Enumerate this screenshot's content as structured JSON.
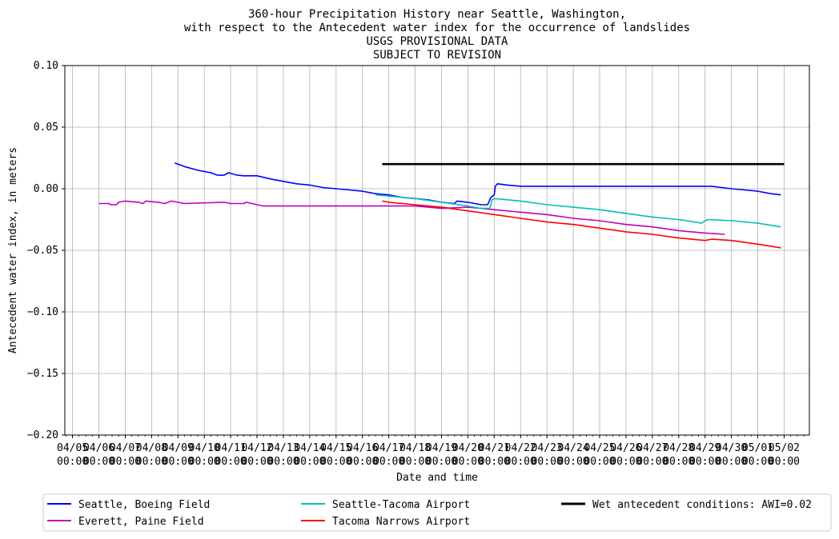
{
  "chart_data": {
    "type": "line",
    "title_lines": [
      "360-hour Precipitation History near Seattle, Washington,",
      "with respect to the Antecedent water index for the occurrence of landslides",
      "USGS PROVISIONAL DATA",
      "SUBJECT TO REVISION"
    ],
    "xlabel": "Date and time",
    "ylabel": "Antecedent water index, in meters",
    "xlim": [
      "2024-04-04T17:00",
      "2024-05-02T23:00"
    ],
    "ylim": [
      -0.2,
      0.1
    ],
    "x_ticks": [
      {
        "date": "2024-04-05T00:00",
        "label1": "04/05",
        "label2": "00:00"
      },
      {
        "date": "2024-04-06T00:00",
        "label1": "04/06",
        "label2": "00:00"
      },
      {
        "date": "2024-04-07T00:00",
        "label1": "04/07",
        "label2": "00:00"
      },
      {
        "date": "2024-04-08T00:00",
        "label1": "04/08",
        "label2": "00:00"
      },
      {
        "date": "2024-04-09T00:00",
        "label1": "04/09",
        "label2": "00:00"
      },
      {
        "date": "2024-04-10T00:00",
        "label1": "04/10",
        "label2": "00:00"
      },
      {
        "date": "2024-04-11T00:00",
        "label1": "04/11",
        "label2": "00:00"
      },
      {
        "date": "2024-04-12T00:00",
        "label1": "04/12",
        "label2": "00:00"
      },
      {
        "date": "2024-04-13T00:00",
        "label1": "04/13",
        "label2": "00:00"
      },
      {
        "date": "2024-04-14T00:00",
        "label1": "04/14",
        "label2": "00:00"
      },
      {
        "date": "2024-04-15T00:00",
        "label1": "04/15",
        "label2": "00:00"
      },
      {
        "date": "2024-04-16T00:00",
        "label1": "04/16",
        "label2": "00:00"
      },
      {
        "date": "2024-04-17T00:00",
        "label1": "04/17",
        "label2": "00:00"
      },
      {
        "date": "2024-04-18T00:00",
        "label1": "04/18",
        "label2": "00:00"
      },
      {
        "date": "2024-04-19T00:00",
        "label1": "04/19",
        "label2": "00:00"
      },
      {
        "date": "2024-04-20T00:00",
        "label1": "04/20",
        "label2": "00:00"
      },
      {
        "date": "2024-04-21T00:00",
        "label1": "04/21",
        "label2": "00:00"
      },
      {
        "date": "2024-04-22T00:00",
        "label1": "04/22",
        "label2": "00:00"
      },
      {
        "date": "2024-04-23T00:00",
        "label1": "04/23",
        "label2": "00:00"
      },
      {
        "date": "2024-04-24T00:00",
        "label1": "04/24",
        "label2": "00:00"
      },
      {
        "date": "2024-04-25T00:00",
        "label1": "04/25",
        "label2": "00:00"
      },
      {
        "date": "2024-04-26T00:00",
        "label1": "04/26",
        "label2": "00:00"
      },
      {
        "date": "2024-04-27T00:00",
        "label1": "04/27",
        "label2": "00:00"
      },
      {
        "date": "2024-04-28T00:00",
        "label1": "04/28",
        "label2": "00:00"
      },
      {
        "date": "2024-04-29T00:00",
        "label1": "04/29",
        "label2": "00:00"
      },
      {
        "date": "2024-04-30T00:00",
        "label1": "04/30",
        "label2": "00:00"
      },
      {
        "date": "2024-05-01T00:00",
        "label1": "05/01",
        "label2": "00:00"
      },
      {
        "date": "2024-05-02T00:00",
        "label1": "05/02",
        "label2": "00:00"
      }
    ],
    "y_ticks": [
      {
        "value": 0.1,
        "label": "0.10"
      },
      {
        "value": 0.05,
        "label": "0.05"
      },
      {
        "value": 0.0,
        "label": "0.00"
      },
      {
        "value": -0.05,
        "label": "−0.05"
      },
      {
        "value": -0.1,
        "label": "−0.10"
      },
      {
        "value": -0.15,
        "label": "−0.15"
      },
      {
        "value": -0.2,
        "label": "−0.20"
      }
    ],
    "grid": true,
    "legend_placement": "below",
    "series": [
      {
        "name": "Seattle, Boeing Field",
        "color": "#0000ff",
        "points": [
          [
            "2024-04-08T21:00",
            0.021
          ],
          [
            "2024-04-09T06:00",
            0.018
          ],
          [
            "2024-04-09T18:00",
            0.015
          ],
          [
            "2024-04-10T06:00",
            0.013
          ],
          [
            "2024-04-10T12:00",
            0.011
          ],
          [
            "2024-04-10T18:00",
            0.011
          ],
          [
            "2024-04-10T22:00",
            0.013
          ],
          [
            "2024-04-11T06:00",
            0.011
          ],
          [
            "2024-04-11T12:00",
            0.0105
          ],
          [
            "2024-04-12T00:00",
            0.0105
          ],
          [
            "2024-04-12T12:00",
            0.008
          ],
          [
            "2024-04-13T00:00",
            0.006
          ],
          [
            "2024-04-13T12:00",
            0.004
          ],
          [
            "2024-04-14T00:00",
            0.003
          ],
          [
            "2024-04-14T12:00",
            0.001
          ],
          [
            "2024-04-15T00:00",
            0.0
          ],
          [
            "2024-04-15T12:00",
            -0.001
          ],
          [
            "2024-04-16T00:00",
            -0.002
          ],
          [
            "2024-04-16T12:00",
            -0.004
          ],
          [
            "2024-04-17T00:00",
            -0.005
          ],
          [
            "2024-04-17T12:00",
            -0.007
          ],
          [
            "2024-04-18T00:00",
            -0.008
          ],
          [
            "2024-04-18T12:00",
            -0.009
          ],
          [
            "2024-04-19T00:00",
            -0.011
          ],
          [
            "2024-04-19T12:00",
            -0.012
          ],
          [
            "2024-04-19T14:00",
            -0.01
          ],
          [
            "2024-04-20T00:00",
            -0.011
          ],
          [
            "2024-04-20T12:00",
            -0.013
          ],
          [
            "2024-04-20T18:00",
            -0.013
          ],
          [
            "2024-04-20T21:00",
            -0.007
          ],
          [
            "2024-04-21T00:00",
            -0.005
          ],
          [
            "2024-04-21T01:00",
            0.002
          ],
          [
            "2024-04-21T03:00",
            0.004
          ],
          [
            "2024-04-21T12:00",
            0.003
          ],
          [
            "2024-04-22T00:00",
            0.002
          ],
          [
            "2024-04-25T00:00",
            0.002
          ],
          [
            "2024-04-29T00:00",
            0.002
          ],
          [
            "2024-04-29T06:00",
            0.002
          ],
          [
            "2024-04-30T00:00",
            0.0
          ],
          [
            "2024-04-30T12:00",
            -0.001
          ],
          [
            "2024-05-01T00:00",
            -0.002
          ],
          [
            "2024-05-01T12:00",
            -0.004
          ],
          [
            "2024-05-01T21:00",
            -0.005
          ]
        ]
      },
      {
        "name": "Everett, Paine Field",
        "color": "#bf00bf",
        "points": [
          [
            "2024-04-06T00:00",
            -0.012
          ],
          [
            "2024-04-06T09:00",
            -0.012
          ],
          [
            "2024-04-06T11:00",
            -0.013
          ],
          [
            "2024-04-06T16:00",
            -0.013
          ],
          [
            "2024-04-06T18:00",
            -0.011
          ],
          [
            "2024-04-07T00:00",
            -0.01
          ],
          [
            "2024-04-07T12:00",
            -0.011
          ],
          [
            "2024-04-07T16:00",
            -0.012
          ],
          [
            "2024-04-07T19:00",
            -0.01
          ],
          [
            "2024-04-08T06:00",
            -0.011
          ],
          [
            "2024-04-08T12:00",
            -0.012
          ],
          [
            "2024-04-08T18:00",
            -0.01
          ],
          [
            "2024-04-09T00:00",
            -0.011
          ],
          [
            "2024-04-09T06:00",
            -0.012
          ],
          [
            "2024-04-10T18:00",
            -0.011
          ],
          [
            "2024-04-11T00:00",
            -0.012
          ],
          [
            "2024-04-11T12:00",
            -0.012
          ],
          [
            "2024-04-11T14:00",
            -0.011
          ],
          [
            "2024-04-12T00:00",
            -0.013
          ],
          [
            "2024-04-12T06:00",
            -0.014
          ],
          [
            "2024-04-15T00:00",
            -0.014
          ],
          [
            "2024-04-18T00:00",
            -0.014
          ],
          [
            "2024-04-18T12:00",
            -0.015
          ],
          [
            "2024-04-19T00:00",
            -0.016
          ],
          [
            "2024-04-20T00:00",
            -0.015
          ],
          [
            "2024-04-20T12:00",
            -0.016
          ],
          [
            "2024-04-21T00:00",
            -0.017
          ],
          [
            "2024-04-22T00:00",
            -0.019
          ],
          [
            "2024-04-23T00:00",
            -0.021
          ],
          [
            "2024-04-24T00:00",
            -0.024
          ],
          [
            "2024-04-25T00:00",
            -0.026
          ],
          [
            "2024-04-26T00:00",
            -0.029
          ],
          [
            "2024-04-27T00:00",
            -0.031
          ],
          [
            "2024-04-28T00:00",
            -0.034
          ],
          [
            "2024-04-29T00:00",
            -0.036
          ],
          [
            "2024-04-29T18:00",
            -0.037
          ]
        ]
      },
      {
        "name": "Seattle-Tacoma Airport",
        "color": "#00bfbf",
        "points": [
          [
            "2024-04-16T12:00",
            -0.005
          ],
          [
            "2024-04-17T00:00",
            -0.006
          ],
          [
            "2024-04-18T00:00",
            -0.008
          ],
          [
            "2024-04-19T00:00",
            -0.011
          ],
          [
            "2024-04-20T00:00",
            -0.014
          ],
          [
            "2024-04-20T12:00",
            -0.016
          ],
          [
            "2024-04-20T20:00",
            -0.016
          ],
          [
            "2024-04-20T22:00",
            -0.009
          ],
          [
            "2024-04-21T00:00",
            -0.008
          ],
          [
            "2024-04-22T00:00",
            -0.01
          ],
          [
            "2024-04-23T00:00",
            -0.013
          ],
          [
            "2024-04-24T00:00",
            -0.015
          ],
          [
            "2024-04-25T00:00",
            -0.017
          ],
          [
            "2024-04-26T00:00",
            -0.02
          ],
          [
            "2024-04-27T00:00",
            -0.023
          ],
          [
            "2024-04-28T00:00",
            -0.025
          ],
          [
            "2024-04-28T21:00",
            -0.028
          ],
          [
            "2024-04-29T00:00",
            -0.026
          ],
          [
            "2024-04-29T03:00",
            -0.025
          ],
          [
            "2024-04-30T00:00",
            -0.026
          ],
          [
            "2024-05-01T00:00",
            -0.028
          ],
          [
            "2024-05-01T21:00",
            -0.031
          ]
        ]
      },
      {
        "name": "Tacoma Narrows Airport",
        "color": "#ff0000",
        "points": [
          [
            "2024-04-16T18:00",
            -0.01
          ],
          [
            "2024-04-17T00:00",
            -0.011
          ],
          [
            "2024-04-18T00:00",
            -0.013
          ],
          [
            "2024-04-19T00:00",
            -0.015
          ],
          [
            "2024-04-20T00:00",
            -0.018
          ],
          [
            "2024-04-21T00:00",
            -0.021
          ],
          [
            "2024-04-22T00:00",
            -0.024
          ],
          [
            "2024-04-23T00:00",
            -0.027
          ],
          [
            "2024-04-24T00:00",
            -0.029
          ],
          [
            "2024-04-25T00:00",
            -0.032
          ],
          [
            "2024-04-26T00:00",
            -0.035
          ],
          [
            "2024-04-27T00:00",
            -0.037
          ],
          [
            "2024-04-28T00:00",
            -0.04
          ],
          [
            "2024-04-29T00:00",
            -0.042
          ],
          [
            "2024-04-29T06:00",
            -0.041
          ],
          [
            "2024-04-30T00:00",
            -0.042
          ],
          [
            "2024-05-01T00:00",
            -0.045
          ],
          [
            "2024-05-01T21:00",
            -0.048
          ]
        ]
      },
      {
        "name": "Wet antecedent conditions: AWI=0.02",
        "color": "#000000",
        "points": [
          [
            "2024-04-16T18:00",
            0.02
          ],
          [
            "2024-05-02T00:00",
            0.02
          ]
        ]
      }
    ]
  }
}
